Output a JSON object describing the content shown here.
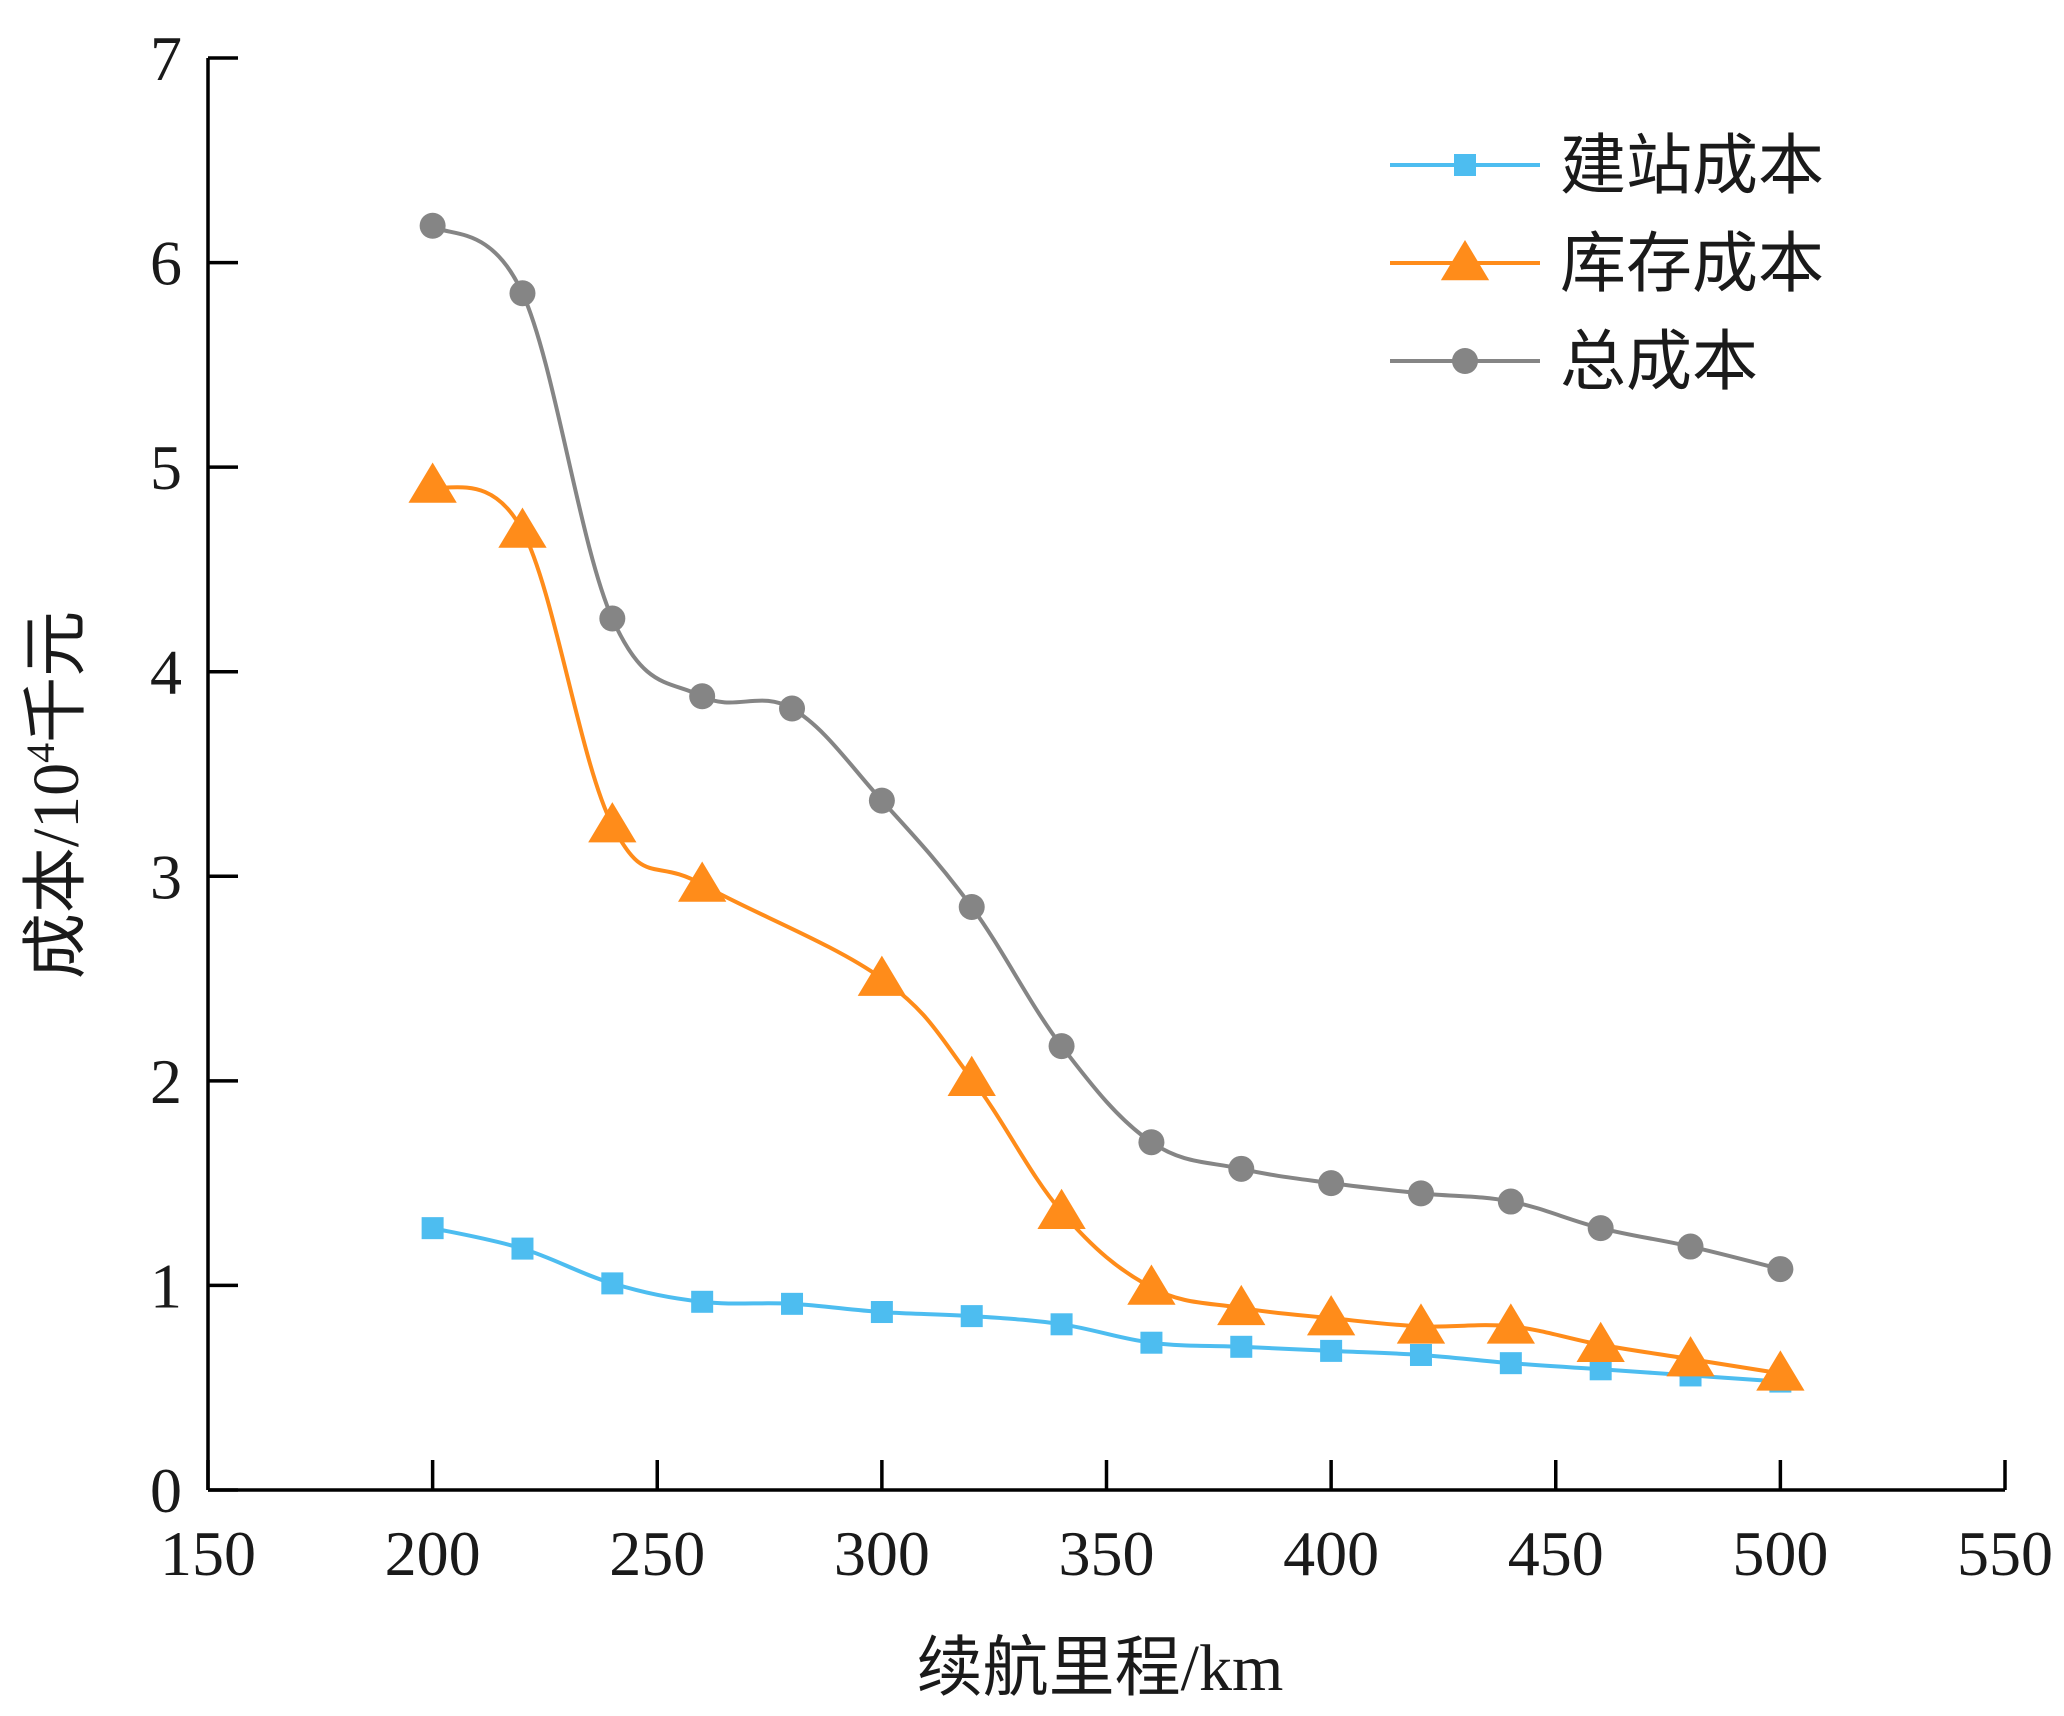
{
  "chart_data": {
    "type": "line",
    "xlabel": "续航里程/km",
    "ylabel": {
      "main": "成本/10",
      "sup": "4",
      "unit": "千元"
    },
    "xlim": [
      150,
      550
    ],
    "ylim": [
      0,
      7
    ],
    "xticks": [
      "150",
      "200",
      "250",
      "300",
      "350",
      "400",
      "450",
      "500",
      "550"
    ],
    "yticks": [
      "0",
      "1",
      "2",
      "3",
      "4",
      "5",
      "6",
      "7"
    ],
    "grid": false,
    "legend_position": "top-right",
    "x": [
      200,
      220,
      240,
      260,
      280,
      300,
      320,
      340,
      360,
      380,
      400,
      420,
      440,
      460,
      480,
      500
    ],
    "series": [
      {
        "name": "建站成本",
        "marker": "square",
        "color": "#4DBDF0",
        "values": [
          1.28,
          1.18,
          1.01,
          0.92,
          0.91,
          0.87,
          0.85,
          0.81,
          0.72,
          0.7,
          0.68,
          0.66,
          0.62,
          0.59,
          0.56,
          0.53
        ]
      },
      {
        "name": "库存成本",
        "marker": "triangle",
        "color": "#FF8C1A",
        "values": [
          4.91,
          4.69,
          3.25,
          2.96,
          null,
          2.5,
          2.01,
          1.36,
          0.99,
          0.89,
          0.84,
          0.8,
          0.8,
          0.71,
          0.64,
          0.57
        ]
      },
      {
        "name": "总成本",
        "marker": "circle",
        "color": "#858585",
        "values": [
          6.18,
          5.85,
          4.26,
          3.88,
          3.82,
          3.37,
          2.85,
          2.17,
          1.7,
          1.57,
          1.5,
          1.45,
          1.41,
          1.28,
          1.19,
          1.08
        ]
      }
    ]
  }
}
